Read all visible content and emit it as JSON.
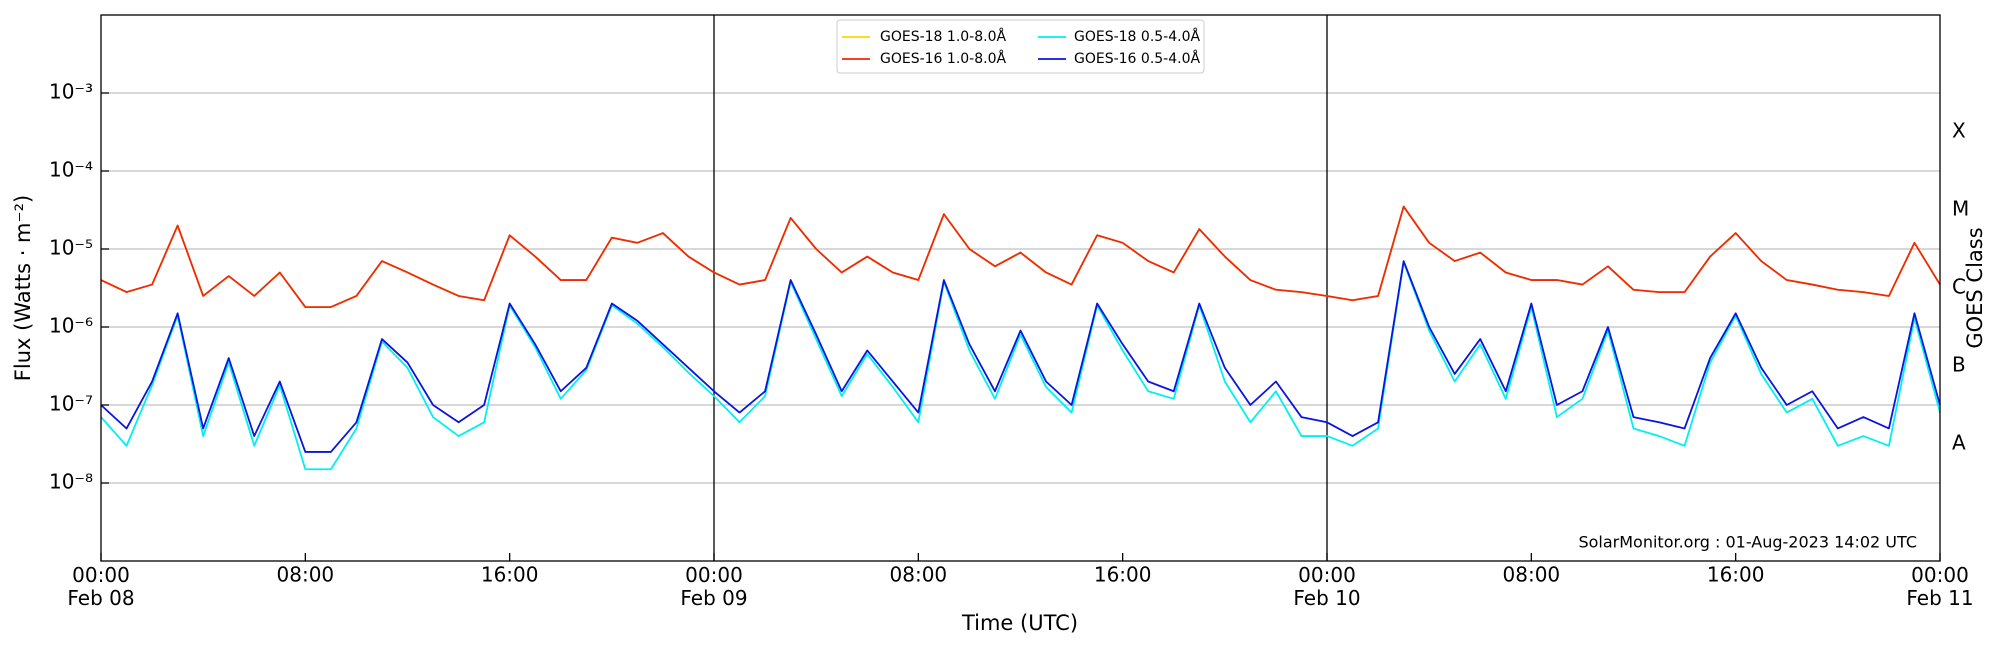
{
  "chart_data": {
    "type": "line",
    "xlabel": "Time (UTC)",
    "ylabel": "Flux (Watts · m⁻²)",
    "y2label": "GOES Class",
    "annotation": "SolarMonitor.org : 01-Aug-2023 14:02 UTC",
    "ylog": true,
    "grid": true,
    "legend": "upper center",
    "xlim": [
      "Feb 08 00:00",
      "Feb 11 00:00"
    ],
    "xticks": [
      {
        "value": "Feb 08 00:00",
        "label": "00:00\nFeb 08"
      },
      {
        "value": "Feb 08 08:00",
        "label": "08:00"
      },
      {
        "value": "Feb 08 16:00",
        "label": "16:00"
      },
      {
        "value": "Feb 09 00:00",
        "label": "00:00\nFeb 09"
      },
      {
        "value": "Feb 09 08:00",
        "label": "08:00"
      },
      {
        "value": "Feb 09 16:00",
        "label": "16:00"
      },
      {
        "value": "Feb 10 00:00",
        "label": "00:00\nFeb 10"
      },
      {
        "value": "Feb 10 08:00",
        "label": "08:00"
      },
      {
        "value": "Feb 10 16:00",
        "label": "16:00"
      },
      {
        "value": "Feb 11 00:00",
        "label": "00:00\nFeb 11"
      }
    ],
    "day_lines": [
      "Feb 09 00:00",
      "Feb 10 00:00"
    ],
    "ylim": [
      1e-09,
      0.01
    ],
    "yticks": [
      {
        "value": 1e-08,
        "label": "10⁻⁸"
      },
      {
        "value": 1e-07,
        "label": "10⁻⁷"
      },
      {
        "value": 1e-06,
        "label": "10⁻⁶"
      },
      {
        "value": 1e-05,
        "label": "10⁻⁵"
      },
      {
        "value": 0.0001,
        "label": "10⁻⁴"
      },
      {
        "value": 0.001,
        "label": "10⁻³"
      }
    ],
    "y2lim": [
      1e-09,
      0.01
    ],
    "y2ticks": [
      {
        "value": 3.162e-08,
        "label": "A"
      },
      {
        "value": 3.162e-07,
        "label": "B"
      },
      {
        "value": 3.162e-06,
        "label": "C"
      },
      {
        "value": 3.162e-05,
        "label": "M"
      },
      {
        "value": 0.0003162,
        "label": "X"
      }
    ],
    "x": [
      "Feb 08 00:00",
      "Feb 08 01:00",
      "Feb 08 02:00",
      "Feb 08 03:00",
      "Feb 08 04:00",
      "Feb 08 05:00",
      "Feb 08 06:00",
      "Feb 08 07:00",
      "Feb 08 08:00",
      "Feb 08 09:00",
      "Feb 08 10:00",
      "Feb 08 11:00",
      "Feb 08 12:00",
      "Feb 08 13:00",
      "Feb 08 14:00",
      "Feb 08 15:00",
      "Feb 08 16:00",
      "Feb 08 17:00",
      "Feb 08 18:00",
      "Feb 08 19:00",
      "Feb 08 20:00",
      "Feb 08 21:00",
      "Feb 08 22:00",
      "Feb 08 23:00",
      "Feb 09 00:00",
      "Feb 09 01:00",
      "Feb 09 02:00",
      "Feb 09 03:00",
      "Feb 09 04:00",
      "Feb 09 05:00",
      "Feb 09 06:00",
      "Feb 09 07:00",
      "Feb 09 08:00",
      "Feb 09 09:00",
      "Feb 09 10:00",
      "Feb 09 11:00",
      "Feb 09 12:00",
      "Feb 09 13:00",
      "Feb 09 14:00",
      "Feb 09 15:00",
      "Feb 09 16:00",
      "Feb 09 17:00",
      "Feb 09 18:00",
      "Feb 09 19:00",
      "Feb 09 20:00",
      "Feb 09 21:00",
      "Feb 09 22:00",
      "Feb 09 23:00",
      "Feb 10 00:00",
      "Feb 10 01:00",
      "Feb 10 02:00",
      "Feb 10 03:00",
      "Feb 10 04:00",
      "Feb 10 05:00",
      "Feb 10 06:00",
      "Feb 10 07:00",
      "Feb 10 08:00",
      "Feb 10 09:00",
      "Feb 10 10:00",
      "Feb 10 11:00",
      "Feb 10 12:00",
      "Feb 10 13:00",
      "Feb 10 14:00",
      "Feb 10 15:00",
      "Feb 10 16:00",
      "Feb 10 17:00",
      "Feb 10 18:00",
      "Feb 10 19:00",
      "Feb 10 20:00",
      "Feb 10 21:00",
      "Feb 10 22:00",
      "Feb 10 23:00",
      "Feb 11 00:00"
    ],
    "series": [
      {
        "name": "GOES-18 1.0-8.0Å",
        "color": "#ffd700",
        "values": [
          4e-06,
          2.8e-06,
          3.5e-06,
          2e-05,
          2.5e-06,
          4.5e-06,
          2.5e-06,
          5e-06,
          1.8e-06,
          1.8e-06,
          2.5e-06,
          7e-06,
          5e-06,
          3.5e-06,
          2.5e-06,
          2.2e-06,
          1.5e-05,
          8e-06,
          4e-06,
          4e-06,
          1.4e-05,
          1.2e-05,
          1.6e-05,
          8e-06,
          5e-06,
          3.5e-06,
          4e-06,
          2.5e-05,
          1e-05,
          5e-06,
          8e-06,
          5e-06,
          4e-06,
          2.8e-05,
          1e-05,
          6e-06,
          9e-06,
          5e-06,
          3.5e-06,
          1.5e-05,
          1.2e-05,
          7e-06,
          5e-06,
          1.8e-05,
          8e-06,
          4e-06,
          3e-06,
          2.8e-06,
          2.5e-06,
          2.2e-06,
          2.5e-06,
          3.5e-05,
          1.2e-05,
          7e-06,
          9e-06,
          5e-06,
          4e-06,
          4e-06,
          3.5e-06,
          6e-06,
          3e-06,
          2.8e-06,
          2.8e-06,
          8e-06,
          1.6e-05,
          7e-06,
          4e-06,
          3.5e-06,
          3e-06,
          2.8e-06,
          2.5e-06,
          1.2e-05,
          3.5e-06
        ]
      },
      {
        "name": "GOES-16 1.0-8.0Å",
        "color": "#ee2a0c",
        "values": [
          4e-06,
          2.8e-06,
          3.5e-06,
          2e-05,
          2.5e-06,
          4.5e-06,
          2.5e-06,
          5e-06,
          1.8e-06,
          1.8e-06,
          2.5e-06,
          7e-06,
          5e-06,
          3.5e-06,
          2.5e-06,
          2.2e-06,
          1.5e-05,
          8e-06,
          4e-06,
          4e-06,
          1.4e-05,
          1.2e-05,
          1.6e-05,
          8e-06,
          5e-06,
          3.5e-06,
          4e-06,
          2.5e-05,
          1e-05,
          5e-06,
          8e-06,
          5e-06,
          4e-06,
          2.8e-05,
          1e-05,
          6e-06,
          9e-06,
          5e-06,
          3.5e-06,
          1.5e-05,
          1.2e-05,
          7e-06,
          5e-06,
          1.8e-05,
          8e-06,
          4e-06,
          3e-06,
          2.8e-06,
          2.5e-06,
          2.2e-06,
          2.5e-06,
          3.5e-05,
          1.2e-05,
          7e-06,
          9e-06,
          5e-06,
          4e-06,
          4e-06,
          3.5e-06,
          6e-06,
          3e-06,
          2.8e-06,
          2.8e-06,
          8e-06,
          1.6e-05,
          7e-06,
          4e-06,
          3.5e-06,
          3e-06,
          2.8e-06,
          2.5e-06,
          1.2e-05,
          3.5e-06
        ]
      },
      {
        "name": "GOES-18 0.5-4.0Å",
        "color": "#00f0f0",
        "values": [
          7e-08,
          3e-08,
          1.8e-07,
          1.4e-06,
          4e-08,
          3.5e-07,
          3e-08,
          1.8e-07,
          1.5e-08,
          1.5e-08,
          5e-08,
          6.5e-07,
          3e-07,
          7e-08,
          4e-08,
          6e-08,
          1.9e-06,
          5.5e-07,
          1.2e-07,
          2.8e-07,
          1.9e-06,
          1.1e-06,
          5.5e-07,
          2.6e-07,
          1.3e-07,
          6e-08,
          1.3e-07,
          3.8e-06,
          7e-07,
          1.3e-07,
          4.5e-07,
          1.7e-07,
          6e-08,
          3.8e-06,
          5e-07,
          1.2e-07,
          8e-07,
          1.7e-07,
          8e-08,
          1.9e-06,
          5e-07,
          1.5e-07,
          1.2e-07,
          1.9e-06,
          2e-07,
          6e-08,
          1.5e-07,
          4e-08,
          4e-08,
          3e-08,
          5e-08,
          6.8e-06,
          9e-07,
          2e-07,
          6e-07,
          1.2e-07,
          1.8e-06,
          7e-08,
          1.2e-07,
          9e-07,
          5e-08,
          4e-08,
          3e-08,
          3.5e-07,
          1.4e-06,
          2.5e-07,
          8e-08,
          1.2e-07,
          3e-08,
          4e-08,
          3e-08,
          1.3e-06,
          8e-08
        ]
      },
      {
        "name": "GOES-16 0.5-4.0Å",
        "color": "#0a14e0",
        "values": [
          1e-07,
          5e-08,
          2e-07,
          1.5e-06,
          5e-08,
          4e-07,
          4e-08,
          2e-07,
          2.5e-08,
          2.5e-08,
          6e-08,
          7e-07,
          3.5e-07,
          1e-07,
          6e-08,
          1e-07,
          2e-06,
          6e-07,
          1.5e-07,
          3e-07,
          2e-06,
          1.2e-06,
          6e-07,
          3e-07,
          1.5e-07,
          8e-08,
          1.5e-07,
          4e-06,
          8e-07,
          1.5e-07,
          5e-07,
          2e-07,
          8e-08,
          4e-06,
          6e-07,
          1.5e-07,
          9e-07,
          2e-07,
          1e-07,
          2e-06,
          6e-07,
          2e-07,
          1.5e-07,
          2e-06,
          3e-07,
          1e-07,
          2e-07,
          7e-08,
          6e-08,
          4e-08,
          6e-08,
          7e-06,
          1e-06,
          2.5e-07,
          7e-07,
          1.5e-07,
          2e-06,
          1e-07,
          1.5e-07,
          1e-06,
          7e-08,
          6e-08,
          5e-08,
          4e-07,
          1.5e-06,
          3e-07,
          1e-07,
          1.5e-07,
          5e-08,
          7e-08,
          5e-08,
          1.5e-06,
          1e-07
        ]
      }
    ]
  }
}
